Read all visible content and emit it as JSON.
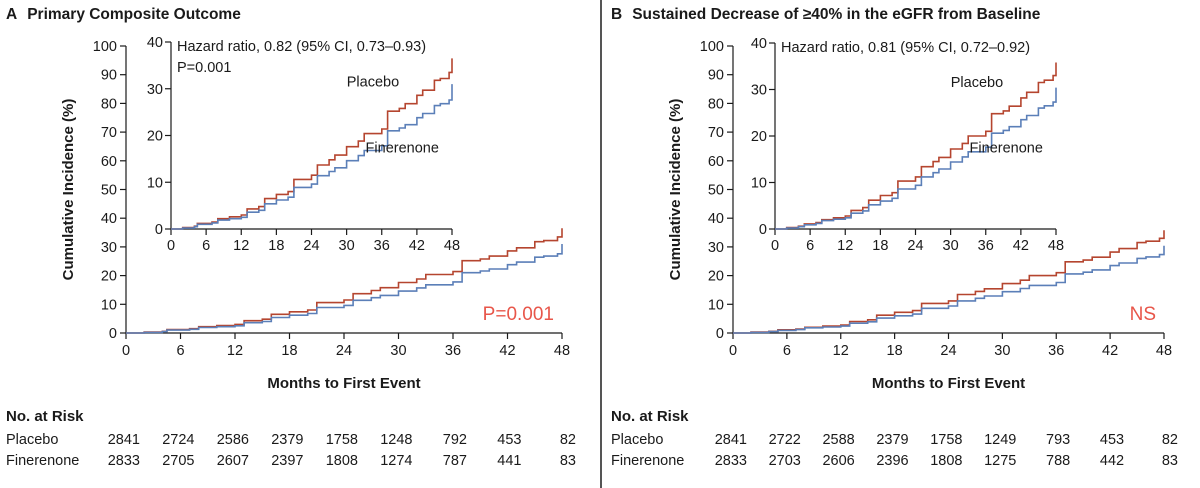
{
  "colors": {
    "placebo": "#b5452f",
    "finerenone": "#5b7fb8",
    "pvalue": "#e8564a",
    "axis": "#1a1a1a"
  },
  "chart_data": [
    {
      "type": "line",
      "panel_letter": "A",
      "title": "Primary Composite Outcome",
      "xlabel": "Months to First Event",
      "ylabel": "Cumulative Incidence (%)",
      "xlim": [
        0,
        48
      ],
      "ylim": [
        0,
        100
      ],
      "xticks": [
        0,
        6,
        12,
        18,
        24,
        30,
        36,
        42,
        48
      ],
      "yticks": [
        0,
        10,
        20,
        30,
        40,
        50,
        60,
        70,
        80,
        90,
        100
      ],
      "annotation": "P=0.001",
      "inset": {
        "xlim": [
          0,
          48
        ],
        "ylim": [
          0,
          40
        ],
        "xticks": [
          0,
          6,
          12,
          18,
          24,
          30,
          36,
          42,
          48
        ],
        "yticks": [
          0,
          10,
          20,
          30,
          40
        ],
        "hazard_text": "Hazard ratio, 0.82 (95% CI, 0.73–0.93)",
        "p_text": "P=0.001",
        "placebo_label": "Placebo",
        "finerenone_label": "Finerenone"
      },
      "series": [
        {
          "name": "Placebo",
          "x": [
            0,
            2,
            4,
            4.5,
            7,
            8,
            10,
            12,
            13,
            15,
            16,
            18,
            20,
            21,
            24,
            25,
            27,
            28,
            30,
            32,
            33,
            36,
            37,
            39,
            40,
            42,
            43,
            45,
            46,
            47.5,
            48
          ],
          "y": [
            0,
            0.3,
            0.6,
            1.2,
            1.5,
            2.2,
            2.6,
            3.0,
            4.3,
            4.8,
            6.5,
            7.4,
            8.0,
            10.6,
            11.5,
            13.7,
            14.8,
            15.8,
            17.6,
            18.8,
            20.4,
            21.4,
            25.2,
            25.8,
            26.8,
            28.6,
            29.7,
            31.8,
            32.2,
            33.5,
            36.5
          ]
        },
        {
          "name": "Finerenone",
          "x": [
            0,
            2,
            4,
            4.5,
            7,
            8,
            10,
            12,
            13,
            15,
            16,
            18,
            20,
            21,
            24,
            25,
            27,
            28,
            30,
            32,
            33,
            36,
            37,
            39,
            40,
            42,
            43,
            45,
            46,
            47.5,
            48
          ],
          "y": [
            0,
            0.2,
            0.5,
            1.0,
            1.3,
            1.9,
            2.2,
            2.5,
            3.6,
            4.0,
            5.4,
            6.2,
            6.8,
            8.9,
            9.6,
            11.4,
            12.3,
            13.1,
            14.6,
            15.7,
            16.8,
            17.8,
            21.0,
            21.6,
            22.3,
            23.8,
            24.7,
            26.4,
            26.8,
            27.6,
            31.0
          ]
        }
      ],
      "risk_table": {
        "title": "No. at Risk",
        "rows": [
          {
            "label": "Placebo",
            "values": [
              "2841",
              "2724",
              "2586",
              "2379",
              "1758",
              "1248",
              "792",
              "453",
              "82"
            ]
          },
          {
            "label": "Finerenone",
            "values": [
              "2833",
              "2705",
              "2607",
              "2397",
              "1808",
              "1274",
              "787",
              "441",
              "83"
            ]
          }
        ]
      }
    },
    {
      "type": "line",
      "panel_letter": "B",
      "title": "Sustained Decrease of ≥40% in the eGFR from Baseline",
      "xlabel": "Months to First Event",
      "ylabel": "Cumulative Incidence (%)",
      "xlim": [
        0,
        48
      ],
      "ylim": [
        0,
        100
      ],
      "xticks": [
        0,
        6,
        12,
        18,
        24,
        30,
        36,
        42,
        48
      ],
      "yticks": [
        0,
        10,
        20,
        30,
        40,
        50,
        60,
        70,
        80,
        90,
        100
      ],
      "annotation": "NS",
      "inset": {
        "xlim": [
          0,
          48
        ],
        "ylim": [
          0,
          40
        ],
        "xticks": [
          0,
          6,
          12,
          18,
          24,
          30,
          36,
          42,
          48
        ],
        "yticks": [
          0,
          10,
          20,
          30,
          40
        ],
        "hazard_text": "Hazard ratio, 0.81 (95% CI, 0.72–0.92)",
        "p_text": "",
        "placebo_label": "Placebo",
        "finerenone_label": "Finerenone"
      },
      "series": [
        {
          "name": "Placebo",
          "x": [
            0,
            2,
            4,
            5,
            7,
            8,
            10,
            12,
            13,
            15,
            16,
            18,
            20,
            21,
            24,
            25,
            27,
            28,
            30,
            32,
            33,
            36,
            37,
            39,
            40,
            42,
            43,
            45,
            46,
            47.5,
            48
          ],
          "y": [
            0,
            0.3,
            0.6,
            1.1,
            1.4,
            2.0,
            2.4,
            2.8,
            4.0,
            4.6,
            6.2,
            7.2,
            7.8,
            10.3,
            11.2,
            13.4,
            14.5,
            15.4,
            17.2,
            18.4,
            20.0,
            21.0,
            24.8,
            25.4,
            26.4,
            28.2,
            29.4,
            31.5,
            32.0,
            33.0,
            35.8
          ]
        },
        {
          "name": "Finerenone",
          "x": [
            0,
            2,
            4,
            5,
            7,
            8,
            10,
            12,
            13,
            15,
            16,
            18,
            20,
            21,
            24,
            25,
            27,
            28,
            30,
            32,
            33,
            36,
            37,
            39,
            40,
            42,
            43,
            45,
            46,
            47.5,
            48
          ],
          "y": [
            0,
            0.2,
            0.5,
            0.9,
            1.2,
            1.8,
            2.1,
            2.4,
            3.4,
            3.9,
            5.2,
            6.0,
            6.6,
            8.6,
            9.4,
            11.2,
            12.1,
            12.9,
            14.4,
            15.5,
            16.6,
            17.6,
            20.6,
            21.2,
            22.0,
            23.5,
            24.4,
            26.0,
            26.5,
            27.3,
            30.4
          ]
        }
      ],
      "risk_table": {
        "title": "No. at Risk",
        "rows": [
          {
            "label": "Placebo",
            "values": [
              "2841",
              "2722",
              "2588",
              "2379",
              "1758",
              "1249",
              "793",
              "453",
              "82"
            ]
          },
          {
            "label": "Finerenone",
            "values": [
              "2833",
              "2703",
              "2606",
              "2396",
              "1808",
              "1275",
              "788",
              "442",
              "83"
            ]
          }
        ]
      }
    }
  ]
}
